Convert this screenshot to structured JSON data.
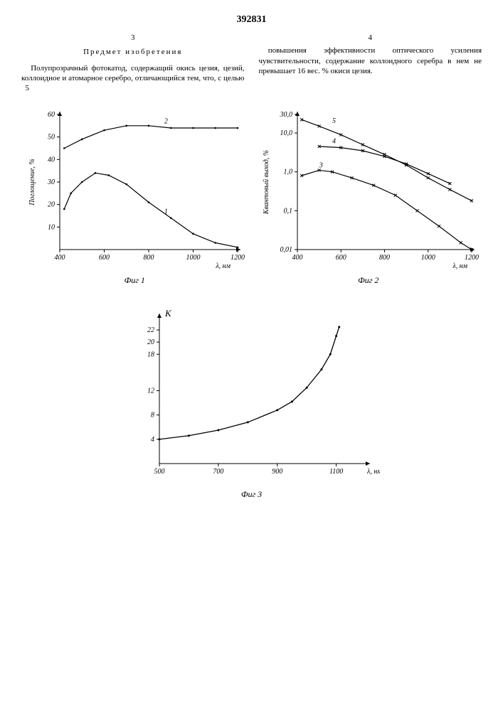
{
  "patent_number": "392831",
  "left_col_num": "3",
  "right_col_num": "4",
  "subject_heading": "Предмет изобретения",
  "col3_text": "Полупрозрачный фотокатод, содержащий окись цезия, цезий, коллоидное и атомарное серебро, отличающийся тем, что, с целью",
  "col4_text": "повышения эффективности оптического усиления чувствительности, содержание коллоидного серебра в нем не превышает 16 вес. % окиси цезия.",
  "line_num_5": "5",
  "fig1": {
    "caption": "Фиг 1",
    "xlabel": "λ, нм",
    "ylabel": "Поглощение, %",
    "xlim": [
      400,
      1200
    ],
    "ylim": [
      0,
      60
    ],
    "xticks": [
      400,
      600,
      800,
      1000,
      1200
    ],
    "yticks": [
      10,
      20,
      30,
      40,
      50,
      60
    ],
    "series": [
      {
        "label": "1",
        "points": [
          [
            420,
            18
          ],
          [
            450,
            25
          ],
          [
            500,
            30
          ],
          [
            560,
            34
          ],
          [
            620,
            33
          ],
          [
            700,
            29
          ],
          [
            800,
            21
          ],
          [
            900,
            14
          ],
          [
            1000,
            7
          ],
          [
            1100,
            3
          ],
          [
            1200,
            1
          ]
        ]
      },
      {
        "label": "2",
        "points": [
          [
            420,
            45
          ],
          [
            500,
            49
          ],
          [
            600,
            53
          ],
          [
            700,
            55
          ],
          [
            800,
            55
          ],
          [
            900,
            54
          ],
          [
            1000,
            54
          ],
          [
            1100,
            54
          ],
          [
            1200,
            54
          ]
        ]
      }
    ],
    "label_positions": {
      "1": [
        870,
        16
      ],
      "2": [
        870,
        56
      ]
    },
    "line_color": "#000000",
    "axis_color": "#000000",
    "tick_fontsize": 10
  },
  "fig2": {
    "caption": "Фиг 2",
    "xlabel": "λ, нм",
    "ylabel": "Квантовый выход, %",
    "xlim": [
      400,
      1200
    ],
    "ylim_log": [
      0.01,
      30
    ],
    "xticks": [
      400,
      600,
      800,
      1000,
      1200
    ],
    "yticks": [
      0.01,
      0.1,
      1.0,
      10.0,
      30.0
    ],
    "ytick_labels": [
      "0,01",
      "0,1",
      "1,0",
      "10,0",
      "30,0"
    ],
    "series": [
      {
        "label": "3",
        "points": [
          [
            420,
            0.8
          ],
          [
            500,
            1.1
          ],
          [
            560,
            1.0
          ],
          [
            650,
            0.7
          ],
          [
            750,
            0.45
          ],
          [
            850,
            0.25
          ],
          [
            950,
            0.1
          ],
          [
            1050,
            0.04
          ],
          [
            1150,
            0.015
          ],
          [
            1200,
            0.01
          ]
        ]
      },
      {
        "label": "4",
        "points": [
          [
            500,
            4.5
          ],
          [
            600,
            4.2
          ],
          [
            700,
            3.5
          ],
          [
            800,
            2.5
          ],
          [
            900,
            1.6
          ],
          [
            1000,
            0.9
          ],
          [
            1100,
            0.5
          ]
        ]
      },
      {
        "label": "5",
        "points": [
          [
            420,
            22
          ],
          [
            500,
            15
          ],
          [
            600,
            9
          ],
          [
            700,
            5
          ],
          [
            800,
            2.8
          ],
          [
            900,
            1.5
          ],
          [
            1000,
            0.7
          ],
          [
            1100,
            0.35
          ],
          [
            1200,
            0.18
          ]
        ]
      }
    ],
    "label_positions": {
      "3": [
        500,
        1.3
      ],
      "4": [
        560,
        5.5
      ],
      "5": [
        560,
        18
      ]
    },
    "line_color": "#000000",
    "axis_color": "#000000"
  },
  "fig3": {
    "caption": "Фиг 3",
    "xlabel": "λ, нм",
    "ylabel": "K",
    "xlim": [
      500,
      1200
    ],
    "ylim": [
      0,
      24
    ],
    "xticks": [
      500,
      700,
      900,
      1100
    ],
    "yticks": [
      4,
      8,
      12,
      18,
      20,
      22
    ],
    "points": [
      [
        500,
        4.0
      ],
      [
        600,
        4.6
      ],
      [
        700,
        5.5
      ],
      [
        800,
        6.8
      ],
      [
        900,
        8.8
      ],
      [
        950,
        10.2
      ],
      [
        1000,
        12.5
      ],
      [
        1050,
        15.5
      ],
      [
        1080,
        18
      ],
      [
        1100,
        21
      ],
      [
        1110,
        22.5
      ]
    ],
    "line_color": "#000000",
    "axis_color": "#000000"
  }
}
